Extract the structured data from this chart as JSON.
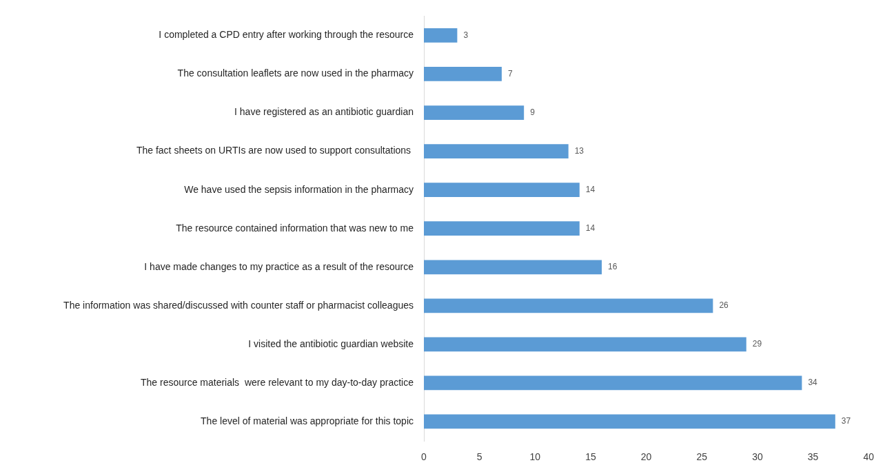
{
  "chart_data": {
    "type": "bar",
    "orientation": "horizontal",
    "categories": [
      "I completed a CPD entry after working through the resource",
      "The consultation leaflets are now used in the pharmacy",
      "I have registered as an antibiotic guardian",
      "The fact sheets on URTIs are now used to support consultations ",
      "We have used the sepsis information in the pharmacy",
      "The resource contained information that was new to me",
      "I have made changes to my practice as a result of the resource",
      "The information was shared/discussed with counter staff or pharmacist colleagues",
      "I visited the antibiotic guardian website",
      "The resource materials  were relevant to my day-to-day practice",
      "The level of material was appropriate for this topic"
    ],
    "values": [
      3,
      7,
      9,
      13,
      14,
      14,
      16,
      26,
      29,
      34,
      37
    ],
    "color": "#5b9bd5",
    "xlim": [
      0,
      40
    ],
    "xticks": [
      0,
      5,
      10,
      15,
      20,
      25,
      30,
      35,
      40
    ],
    "data_labels": true
  }
}
